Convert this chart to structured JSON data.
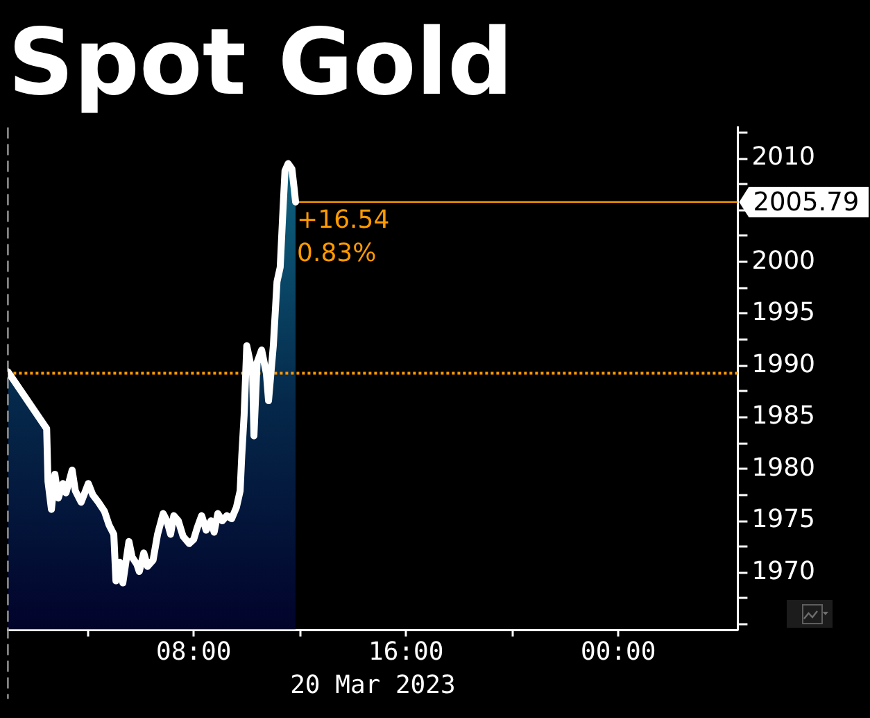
{
  "chart_data": {
    "type": "area",
    "title": "Spot Gold",
    "xlabel": "20 Mar 2023",
    "x": [
      1.0,
      2.46,
      2.51,
      2.64,
      2.77,
      2.9,
      3.07,
      3.19,
      3.42,
      3.54,
      3.76,
      4.03,
      4.2,
      4.41,
      4.64,
      4.81,
      4.99,
      5.07,
      5.21,
      5.33,
      5.56,
      5.68,
      5.86,
      5.95,
      6.12,
      6.26,
      6.47,
      6.64,
      6.85,
      6.99,
      7.13,
      7.25,
      7.42,
      7.6,
      7.83,
      8.0,
      8.13,
      8.3,
      8.47,
      8.65,
      8.77,
      8.91,
      9.08,
      9.25,
      9.43,
      9.61,
      9.75,
      9.81,
      9.9,
      10.0,
      10.22,
      10.27,
      10.39,
      10.56,
      10.74,
      10.82,
      11.0,
      11.14,
      11.26,
      11.35,
      11.44,
      11.56,
      11.7,
      11.79,
      11.84
    ],
    "series": [
      {
        "color": "#ffffff",
        "values": [
          1989.4,
          1983.9,
          1978.8,
          1976.1,
          1979.5,
          1977.2,
          1978.6,
          1977.7,
          1979.9,
          1977.9,
          1976.8,
          1978.6,
          1977.5,
          1976.8,
          1975.9,
          1974.6,
          1973.7,
          1969.2,
          1971.0,
          1969.0,
          1973.0,
          1971.5,
          1970.8,
          1970.1,
          1971.9,
          1970.6,
          1971.2,
          1973.7,
          1975.7,
          1975.0,
          1973.7,
          1975.5,
          1975.0,
          1973.5,
          1972.8,
          1973.2,
          1974.3,
          1975.5,
          1974.1,
          1975.0,
          1973.9,
          1975.7,
          1975.0,
          1975.5,
          1975.2,
          1976.3,
          1977.9,
          1981.2,
          1985.2,
          1991.9,
          1989.2,
          1983.2,
          1990.3,
          1991.5,
          1989.2,
          1986.6,
          1991.9,
          1998.1,
          1999.5,
          2004.3,
          2008.8,
          2009.5,
          2009.0,
          2007.0,
          2005.79
        ]
      }
    ],
    "xlim": [
      1,
      28.5
    ],
    "xticks": [
      {
        "value": 4,
        "label": null
      },
      {
        "value": 8,
        "label": "08:00"
      },
      {
        "value": 12,
        "label": null
      },
      {
        "value": 16,
        "label": "16:00"
      },
      {
        "value": 20,
        "label": null
      },
      {
        "value": 24,
        "label": "00:00"
      }
    ],
    "ylim": [
      1964.5,
      2013
    ],
    "yticks": [
      {
        "value": 1965,
        "label": null
      },
      {
        "value": 1967.5,
        "label": null
      },
      1970,
      {
        "value": 1972.5,
        "label": null
      },
      1975,
      {
        "value": 1977.5,
        "label": null
      },
      1980,
      {
        "value": 1982.5,
        "label": null
      },
      1985,
      {
        "value": 1987.5,
        "label": null
      },
      1990,
      {
        "value": 1992.5,
        "label": null
      },
      1995,
      {
        "value": 1997.5,
        "label": null
      },
      2000,
      {
        "value": 2002.5,
        "label": null
      },
      {
        "value": 2005,
        "label": null
      },
      {
        "value": 2007.5,
        "label": null
      },
      2010,
      {
        "value": 2012.5,
        "label": null
      }
    ],
    "ref_lines": [
      {
        "axis": "x",
        "value": 1,
        "color": "#9a9a9a",
        "line_style": "dashed"
      },
      {
        "axis": "y",
        "value": 1989.25,
        "color": "#ff9a00",
        "line_style": "dotted"
      },
      {
        "axis": "y",
        "value": 2005.79,
        "label": "2005.79",
        "color": "#ff9a00",
        "line_style": "solid"
      }
    ],
    "annotations": [
      {
        "text": "+16.54",
        "x": 11.84,
        "y": 2005.79
      },
      {
        "text": "0.83%",
        "x": 11.84,
        "y": 2005.79
      }
    ],
    "marker": "none"
  }
}
